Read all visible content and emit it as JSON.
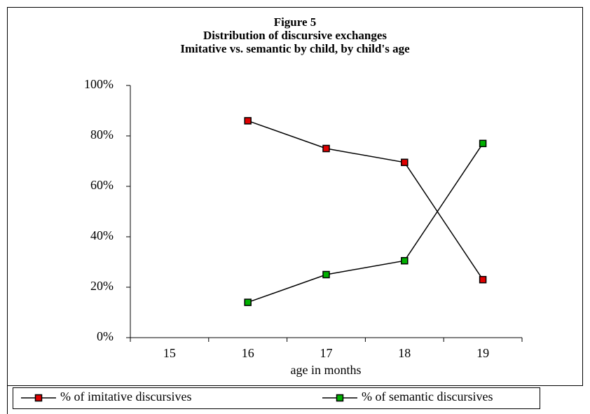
{
  "chart_data": {
    "type": "line",
    "title": "Figure 5",
    "subtitle": [
      "Distribution of discursive exchanges",
      "Imitative vs. semantic by child, by child's age"
    ],
    "x_label": "age in months",
    "categories": [
      "15",
      "16",
      "17",
      "18",
      "19"
    ],
    "series": [
      {
        "name": "% of imitative discursives",
        "color": "#e00000",
        "values": [
          null,
          86,
          75,
          69.5,
          23
        ]
      },
      {
        "name": "% of semantic discursives",
        "color": "#00b000",
        "values": [
          null,
          14,
          25,
          30.5,
          77
        ]
      }
    ],
    "ylim": [
      0,
      100
    ],
    "yticks": [
      {
        "value": 0,
        "label": "0%"
      },
      {
        "value": 20,
        "label": "20%"
      },
      {
        "value": 40,
        "label": "40%"
      },
      {
        "value": 60,
        "label": "60%"
      },
      {
        "value": 80,
        "label": "80%"
      },
      {
        "value": 100,
        "label": "100%"
      }
    ],
    "grid": false,
    "legend": "bottom"
  }
}
